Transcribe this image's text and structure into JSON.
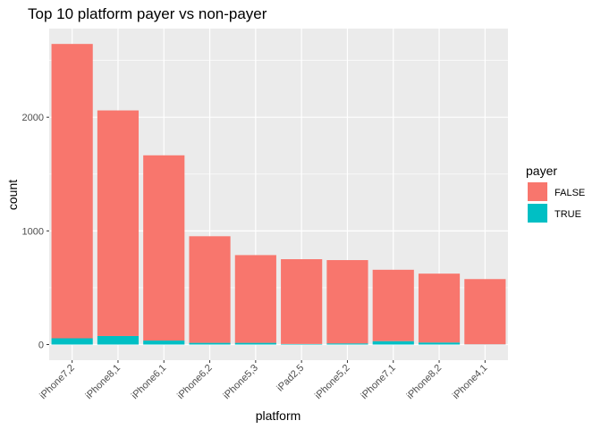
{
  "chart_data": {
    "type": "bar",
    "stacked": true,
    "title": "Top 10 platform payer vs non-payer",
    "xlabel": "platform",
    "ylabel": "count",
    "categories": [
      "iPhone7,2",
      "iPhone8,1",
      "iPhone6,1",
      "iPhone6,2",
      "iPhone5,3",
      "iPad2,5",
      "iPhone5,2",
      "iPhone7,1",
      "iPhone8,2",
      "iPhone4,1"
    ],
    "series": [
      {
        "name": "FALSE",
        "color": "#F8766D",
        "values": [
          2590,
          1985,
          1630,
          938,
          772,
          746,
          733,
          628,
          606,
          574
        ]
      },
      {
        "name": "TRUE",
        "color": "#00BFC4",
        "values": [
          55,
          75,
          35,
          15,
          15,
          5,
          10,
          30,
          18,
          2
        ]
      }
    ],
    "ylim": [
      0,
      2780
    ],
    "yticks": [
      0,
      1000,
      2000
    ],
    "ytick_labels": [
      "0",
      "1000",
      "2000"
    ],
    "legend": {
      "title": "payer",
      "position": "right"
    },
    "grid": true
  }
}
